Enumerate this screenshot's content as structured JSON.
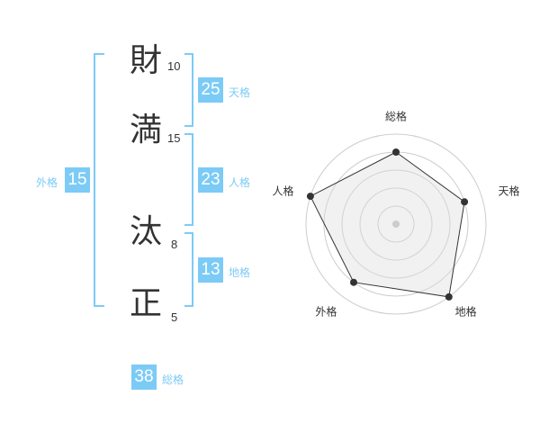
{
  "name": {
    "chars": [
      {
        "char": "財",
        "strokes": "10"
      },
      {
        "char": "満",
        "strokes": "15"
      },
      {
        "char": "汰",
        "strokes": "8"
      },
      {
        "char": "正",
        "strokes": "5"
      }
    ]
  },
  "fortunes": {
    "tenkaku": {
      "label": "天格",
      "value": "25"
    },
    "jinkaku": {
      "label": "人格",
      "value": "23"
    },
    "chikaku": {
      "label": "地格",
      "value": "13"
    },
    "gaikaku": {
      "label": "外格",
      "value": "15"
    },
    "soukaku": {
      "label": "総格",
      "value": "38"
    }
  },
  "accent_color": "#7ccbf6",
  "chart_data": {
    "type": "radar",
    "axes": [
      "総格",
      "天格",
      "地格",
      "外格",
      "人格"
    ],
    "values": [
      4,
      4,
      5,
      4,
      5
    ],
    "range": [
      0,
      5
    ],
    "rings": 5
  }
}
